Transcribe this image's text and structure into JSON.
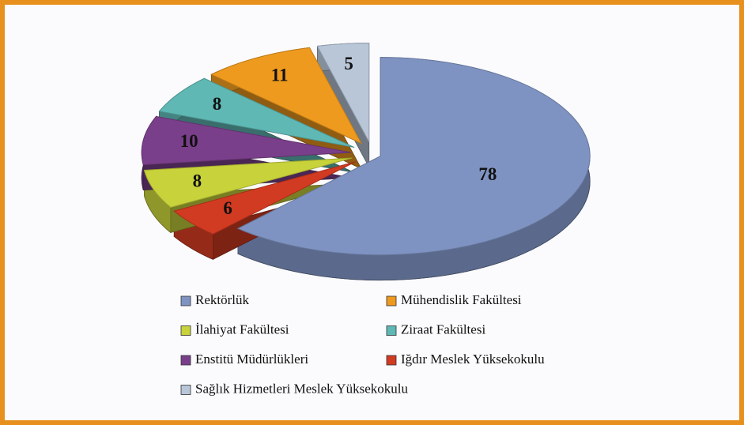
{
  "chart_data": {
    "type": "pie",
    "categories": [
      "Rektörlük",
      "Iğdır Meslek Yüksekokulu",
      "İlahiyat Fakültesi",
      "Enstitü Müdürlükleri",
      "Ziraat Fakültesi",
      "Mühendislik Fakültesi",
      "Sağlık Hizmetleri Meslek Yüksekokulu"
    ],
    "values": [
      78,
      6,
      8,
      10,
      8,
      11,
      5
    ],
    "colors": [
      "#7f93c2",
      "#d13b22",
      "#c8d23a",
      "#7a3f8a",
      "#5fb8b4",
      "#ee9a1e",
      "#b8c6d8"
    ]
  }
}
